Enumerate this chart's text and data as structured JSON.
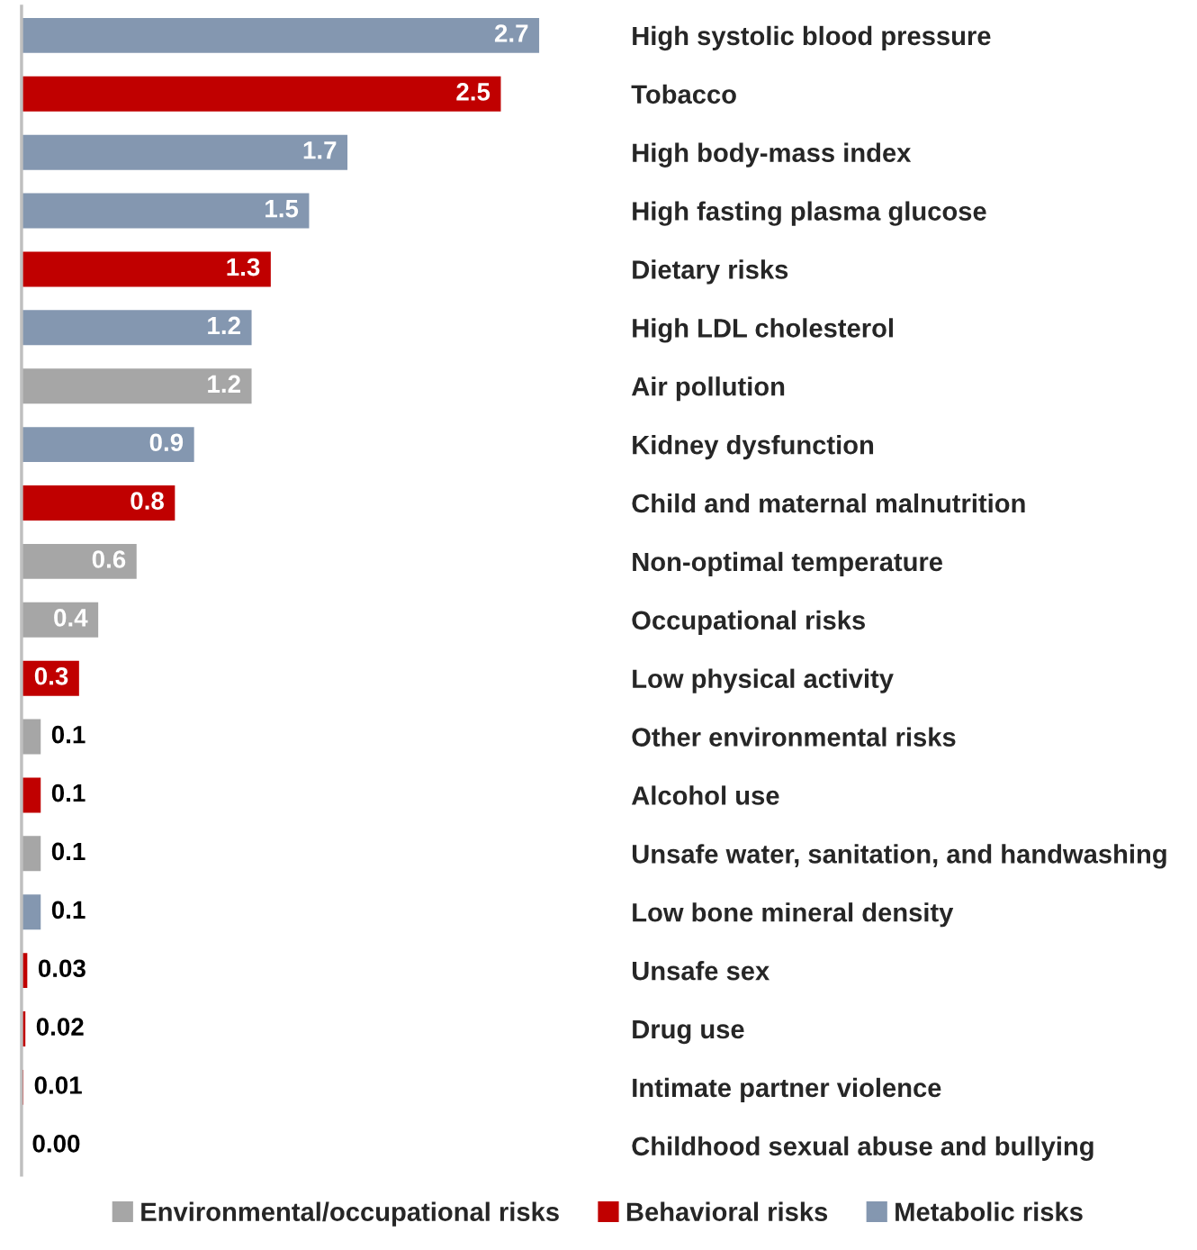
{
  "chart_data": {
    "type": "bar",
    "orientation": "horizontal",
    "data_labels": true,
    "legend": "bottom",
    "categories": [
      "High systolic blood pressure",
      "Tobacco",
      "High body-mass index",
      "High fasting plasma glucose",
      "Dietary risks",
      "High LDL cholesterol",
      "Air pollution",
      "Kidney dysfunction",
      "Child and maternal malnutrition",
      "Non-optimal temperature",
      "Occupational risks",
      "Low physical activity",
      "Other environmental risks",
      "Alcohol use",
      "Unsafe water, sanitation, and handwashing",
      "Low bone mineral density",
      "Unsafe sex",
      "Drug use",
      "Intimate partner violence",
      "Childhood sexual abuse and bullying"
    ],
    "series": [
      {
        "name": "Environmental/occupational risks",
        "color": "#a6a6a6",
        "values": [
          null,
          null,
          null,
          null,
          null,
          null,
          1.2,
          null,
          null,
          0.6,
          0.4,
          null,
          0.1,
          null,
          0.1,
          null,
          null,
          null,
          null,
          null
        ],
        "value_labels": [
          null,
          null,
          null,
          null,
          null,
          null,
          "1.2",
          null,
          null,
          "0.6",
          "0.4",
          null,
          "0.1",
          null,
          "0.1",
          null,
          null,
          null,
          null,
          null
        ]
      },
      {
        "name": "Behavioral risks",
        "color": "#c00000",
        "values": [
          null,
          2.5,
          null,
          null,
          1.3,
          null,
          null,
          null,
          0.8,
          null,
          null,
          0.3,
          null,
          0.1,
          null,
          null,
          0.03,
          0.02,
          0.01,
          0.0
        ],
        "value_labels": [
          null,
          "2.5",
          null,
          null,
          "1.3",
          null,
          null,
          null,
          "0.8",
          null,
          null,
          "0.3",
          null,
          "0.1",
          null,
          null,
          "0.03",
          "0.02",
          "0.01",
          "0.00"
        ]
      },
      {
        "name": "Metabolic risks",
        "color": "#8497b0",
        "values": [
          2.7,
          null,
          1.7,
          1.5,
          null,
          1.2,
          null,
          0.9,
          null,
          null,
          null,
          null,
          null,
          null,
          null,
          0.1,
          null,
          null,
          null,
          null
        ],
        "value_labels": [
          "2.7",
          null,
          "1.7",
          "1.5",
          null,
          "1.2",
          null,
          "0.9",
          null,
          null,
          null,
          null,
          null,
          null,
          null,
          "0.1",
          null,
          null,
          null,
          null
        ]
      }
    ]
  }
}
